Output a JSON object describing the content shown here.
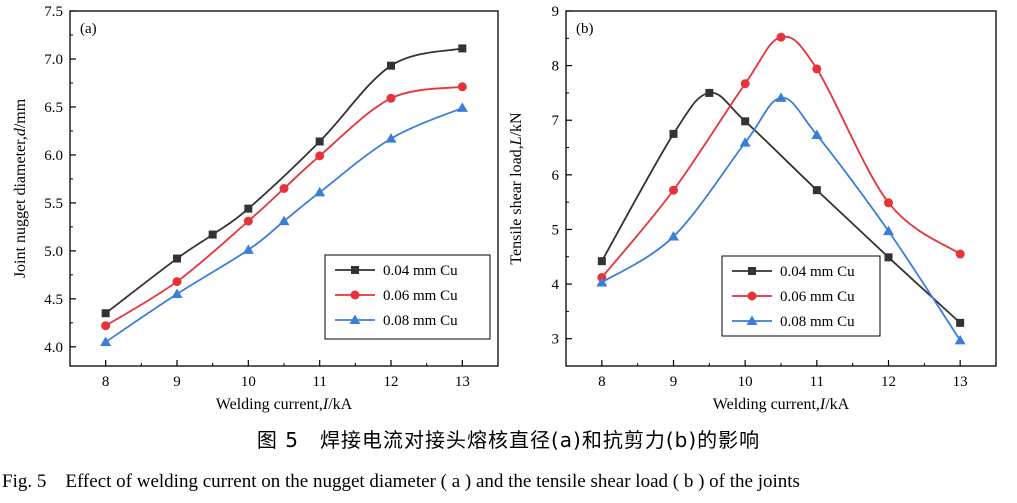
{
  "chart_data": [
    {
      "type": "line",
      "panel_label": "(a)",
      "xlabel_pre": "Welding current,",
      "xlabel_sym": "I",
      "xlabel_post": "/kA",
      "ylabel_pre": "Joint nugget diameter,",
      "ylabel_sym": "d",
      "ylabel_post": "/mm",
      "xlim": [
        7.5,
        13.5
      ],
      "ylim": [
        3.8,
        7.5
      ],
      "xticks": [
        "8",
        "9",
        "10",
        "11",
        "12",
        "13"
      ],
      "yticks": [
        "4.0",
        "4.5",
        "5.0",
        "5.5",
        "6.0",
        "6.5",
        "7.0",
        "7.5"
      ],
      "legend_position": "bottom-right",
      "grid": false,
      "series": [
        {
          "name": "0.04 mm Cu",
          "marker": "square",
          "color": "#333333",
          "x": [
            8,
            9,
            9.5,
            10,
            11,
            12,
            13
          ],
          "y": [
            4.35,
            4.92,
            5.17,
            5.44,
            6.14,
            6.93,
            7.11
          ]
        },
        {
          "name": "0.06 mm Cu",
          "marker": "circle",
          "color": "#e8323a",
          "x": [
            8,
            9,
            10,
            10.5,
            11,
            12,
            13
          ],
          "y": [
            4.22,
            4.68,
            5.31,
            5.65,
            5.99,
            6.59,
            6.71
          ]
        },
        {
          "name": "0.08 mm Cu",
          "marker": "triangle",
          "color": "#3b7ed8",
          "x": [
            8,
            9,
            10,
            10.5,
            11,
            12,
            13
          ],
          "y": [
            4.05,
            4.55,
            5.01,
            5.31,
            5.61,
            6.17,
            6.49
          ]
        }
      ]
    },
    {
      "type": "line",
      "panel_label": "(b)",
      "xlabel_pre": "Welding current,",
      "xlabel_sym": "I",
      "xlabel_post": "/kA",
      "ylabel_pre": "Tensile shear load,",
      "ylabel_sym": "L",
      "ylabel_post": "/kN",
      "xlim": [
        7.5,
        13.5
      ],
      "ylim": [
        2.5,
        9
      ],
      "xticks": [
        "8",
        "9",
        "10",
        "11",
        "12",
        "13"
      ],
      "yticks": [
        "3",
        "4",
        "5",
        "6",
        "7",
        "8",
        "9"
      ],
      "legend_position": "bottom-left",
      "grid": false,
      "series": [
        {
          "name": "0.04 mm Cu",
          "marker": "square",
          "color": "#333333",
          "x": [
            8,
            9,
            9.5,
            10,
            11,
            12,
            13
          ],
          "y": [
            4.42,
            6.75,
            7.5,
            6.98,
            5.72,
            4.49,
            3.29
          ]
        },
        {
          "name": "0.06 mm Cu",
          "marker": "circle",
          "color": "#e8323a",
          "x": [
            8,
            9,
            10,
            10.5,
            11,
            12,
            13
          ],
          "y": [
            4.12,
            5.72,
            7.67,
            8.52,
            7.94,
            5.49,
            4.55
          ]
        },
        {
          "name": "0.08 mm Cu",
          "marker": "triangle",
          "color": "#3b7ed8",
          "x": [
            8,
            9,
            10,
            10.5,
            11,
            12,
            13
          ],
          "y": [
            4.03,
            4.87,
            6.59,
            7.41,
            6.73,
            4.97,
            2.97
          ]
        }
      ]
    }
  ],
  "caption_cn": "图 5　焊接电流对接头熔核直径(a)和抗剪力(b)的影响",
  "caption_en": "Fig. 5　Effect of welding current on the nugget diameter ( a ) and the tensile shear load ( b ) of the joints"
}
